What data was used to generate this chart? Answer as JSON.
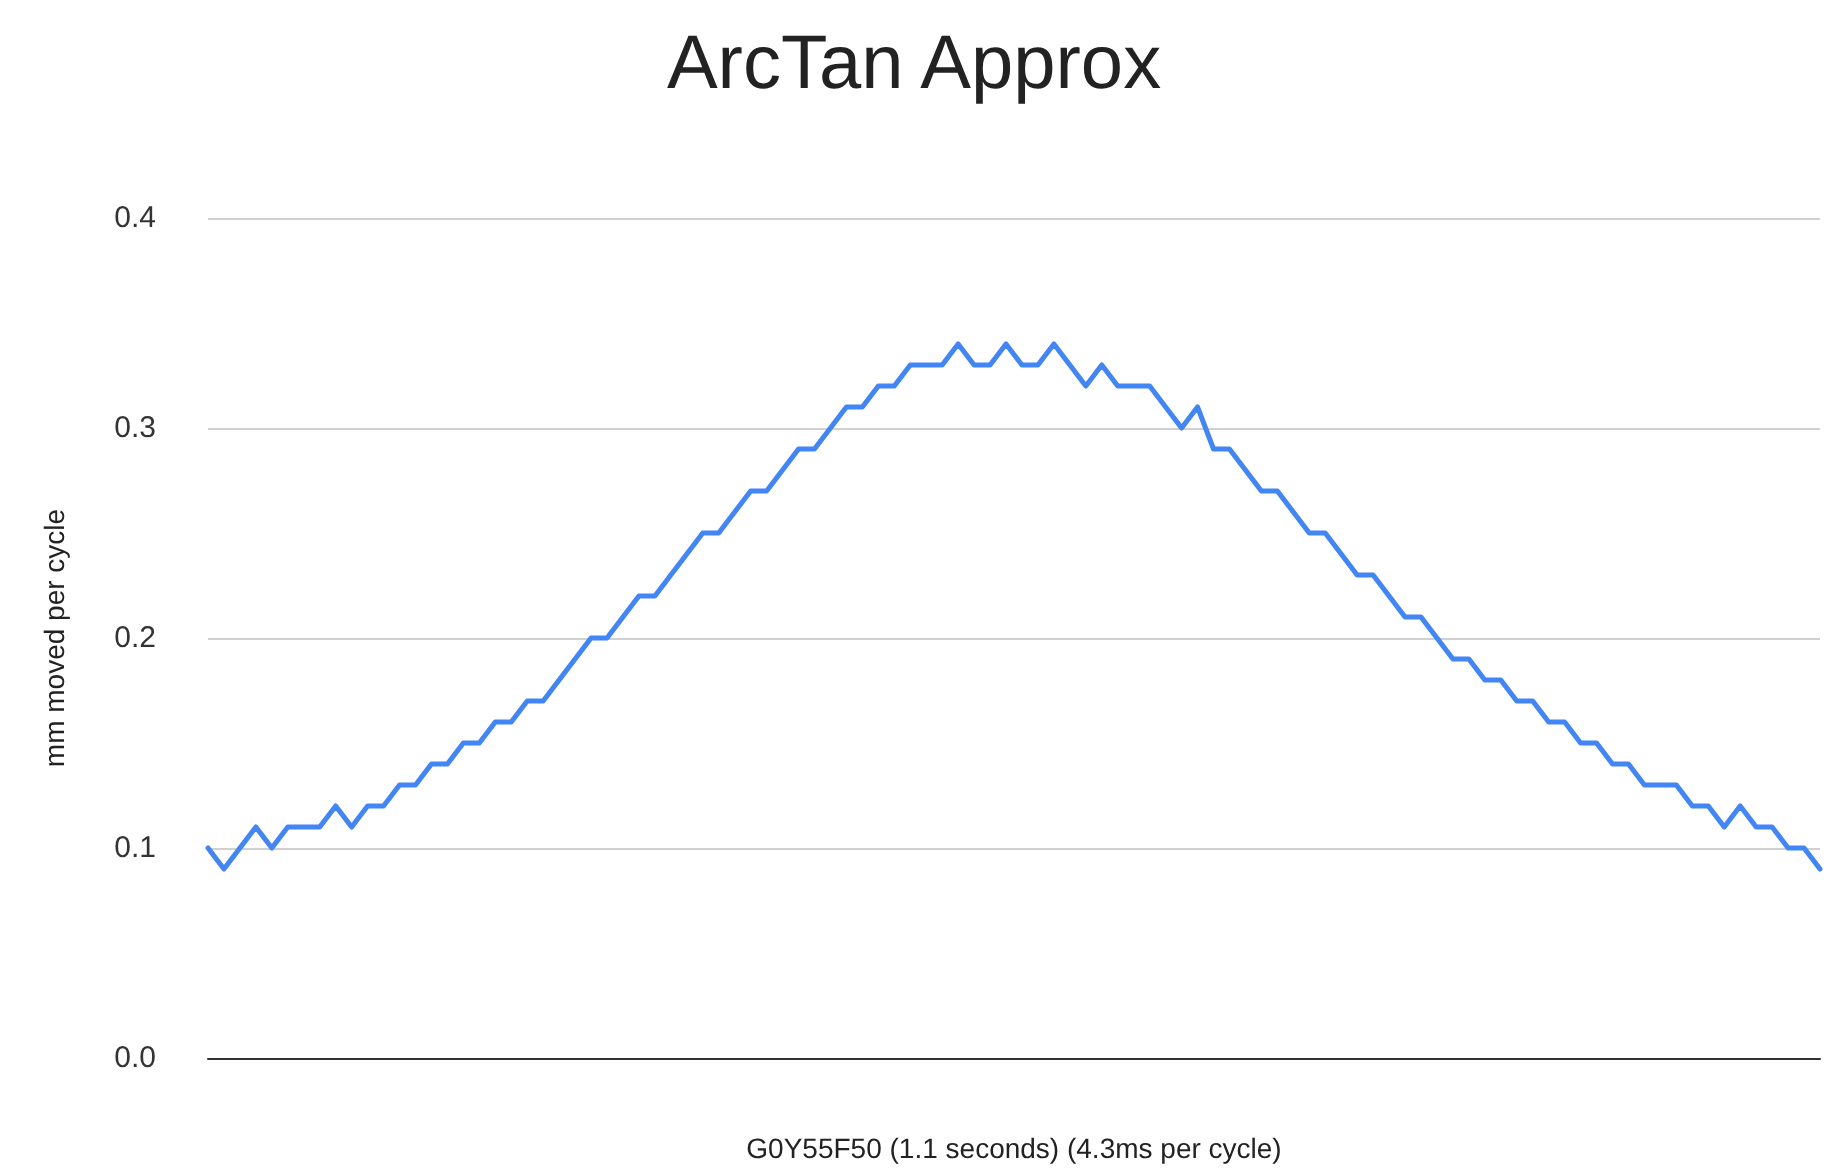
{
  "chart_data": {
    "type": "line",
    "title": "ArcTan Approx",
    "xlabel": "G0Y55F50 (1.1 seconds) (4.3ms per cycle)",
    "ylabel": "mm moved per cycle",
    "categories": [
      null,
      null,
      null,
      null,
      null,
      null,
      null,
      null,
      null,
      null,
      null,
      null,
      null,
      null,
      null,
      null,
      null,
      null,
      null,
      null,
      null,
      null,
      null,
      null,
      null,
      null,
      null,
      null,
      null,
      null,
      null,
      null,
      null,
      null,
      null,
      null,
      null,
      null,
      null,
      null,
      null,
      null,
      null,
      null,
      null,
      null,
      null,
      null,
      null,
      null,
      null,
      null,
      null,
      null,
      null,
      null,
      null,
      null,
      null,
      null,
      null,
      null,
      null,
      null,
      null,
      null,
      null,
      null,
      null,
      null,
      null,
      null,
      null,
      null,
      null,
      null,
      null,
      null,
      null,
      null,
      null,
      null,
      null,
      null,
      null,
      null,
      null,
      null,
      null,
      null,
      null,
      null,
      null,
      null,
      null,
      null,
      null,
      null,
      null,
      null,
      null,
      null
    ],
    "series": [
      {
        "color": "#4285f4",
        "values": [
          0.1,
          0.09,
          0.1,
          0.11,
          0.1,
          0.11,
          0.11,
          0.11,
          0.12,
          0.11,
          0.12,
          0.12,
          0.13,
          0.13,
          0.14,
          0.14,
          0.15,
          0.15,
          0.16,
          0.16,
          0.17,
          0.17,
          0.18,
          0.19,
          0.2,
          0.2,
          0.21,
          0.22,
          0.22,
          0.23,
          0.24,
          0.25,
          0.25,
          0.26,
          0.27,
          0.27,
          0.28,
          0.29,
          0.29,
          0.3,
          0.31,
          0.31,
          0.32,
          0.32,
          0.33,
          0.33,
          0.33,
          0.34,
          0.33,
          0.33,
          0.34,
          0.33,
          0.33,
          0.34,
          0.33,
          0.32,
          0.33,
          0.32,
          0.32,
          0.32,
          0.31,
          0.3,
          0.31,
          0.29,
          0.29,
          0.28,
          0.27,
          0.27,
          0.26,
          0.25,
          0.25,
          0.24,
          0.23,
          0.23,
          0.22,
          0.21,
          0.21,
          0.2,
          0.19,
          0.19,
          0.18,
          0.18,
          0.17,
          0.17,
          0.16,
          0.16,
          0.15,
          0.15,
          0.14,
          0.14,
          0.13,
          0.13,
          0.13,
          0.12,
          0.12,
          0.11,
          0.12,
          0.11,
          0.11,
          0.1,
          0.1,
          0.09
        ]
      }
    ],
    "ylim": [
      0,
      0.4
    ],
    "yticks": [
      {
        "value": 0,
        "label": "0.0"
      },
      0.1,
      0.2,
      0.3,
      0.4
    ],
    "grid": "y",
    "line_style": "solid",
    "tick_labels": "y"
  }
}
